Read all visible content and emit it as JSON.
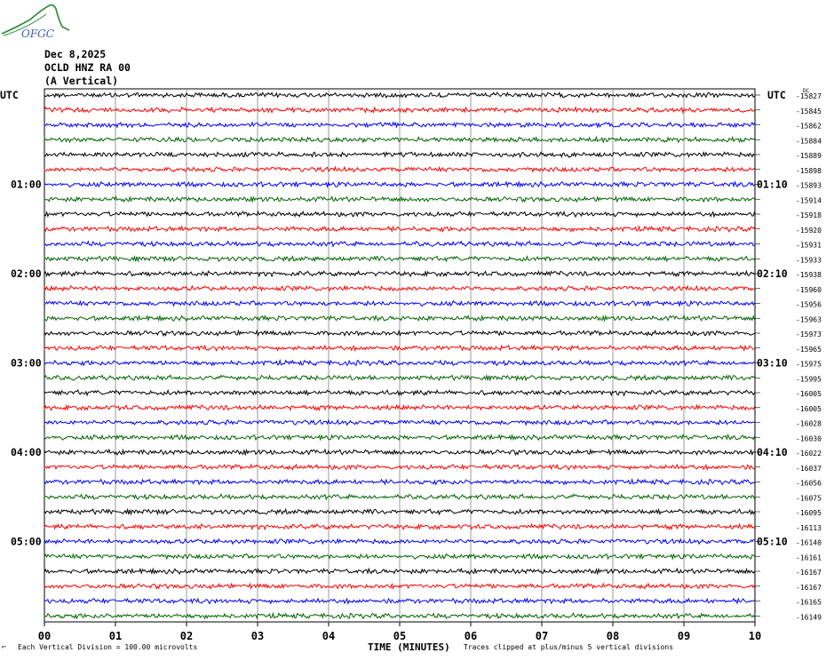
{
  "header": {
    "date": "Dec 8,2025",
    "station": "OCLD HNZ RA 00",
    "component": "(A Vertical)"
  },
  "logo": {
    "text": "OFGC"
  },
  "footer": {
    "scale_note": "Each Vertical Division =  100.00 microvolts",
    "clip_note": "Traces clipped at plus/minus 5 vertical divisions",
    "xlabel": "TIME (MINUTES)"
  },
  "colors": {
    "cycle": [
      "#000000",
      "#ff0000",
      "#0000ff",
      "#006400"
    ],
    "grid": "#808080"
  },
  "chart_data": {
    "type": "line",
    "title": "",
    "xlabel": "TIME (MINUTES)",
    "x_ticks": [
      "00",
      "01",
      "02",
      "03",
      "04",
      "05",
      "06",
      "07",
      "08",
      "09",
      "10"
    ],
    "xlim": [
      0,
      10
    ],
    "left_label_top": "UTC",
    "right_label_top": "UTC",
    "right_header_small": "DC",
    "left_time_labels": [
      {
        "trace": 6,
        "label": "01:00"
      },
      {
        "trace": 12,
        "label": "02:00"
      },
      {
        "trace": 18,
        "label": "03:00"
      },
      {
        "trace": 24,
        "label": "04:00"
      },
      {
        "trace": 30,
        "label": "05:00"
      }
    ],
    "right_time_labels": [
      {
        "trace": 6,
        "label": "01:10"
      },
      {
        "trace": 12,
        "label": "02:10"
      },
      {
        "trace": 18,
        "label": "03:10"
      },
      {
        "trace": 24,
        "label": "04:10"
      },
      {
        "trace": 30,
        "label": "05:10"
      }
    ],
    "dc_offsets": [
      "-15827",
      "-15845",
      "-15862",
      "-15884",
      "-15889",
      "-15898",
      "-15893",
      "-15914",
      "-15918",
      "-15920",
      "-15931",
      "-15933",
      "-15938",
      "-15960",
      "-15956",
      "-15963",
      "-15973",
      "-15965",
      "-15975",
      "-15995",
      "-16005",
      "-16005",
      "-16028",
      "-16030",
      "-16022",
      "-16037",
      "-16056",
      "-16075",
      "-16095",
      "-16113",
      "-16140",
      "-16161",
      "-16167",
      "-16167",
      "-16165",
      "-16149"
    ],
    "trace_count": 36,
    "grid": true,
    "vertical_division_microvolts": 100.0
  }
}
